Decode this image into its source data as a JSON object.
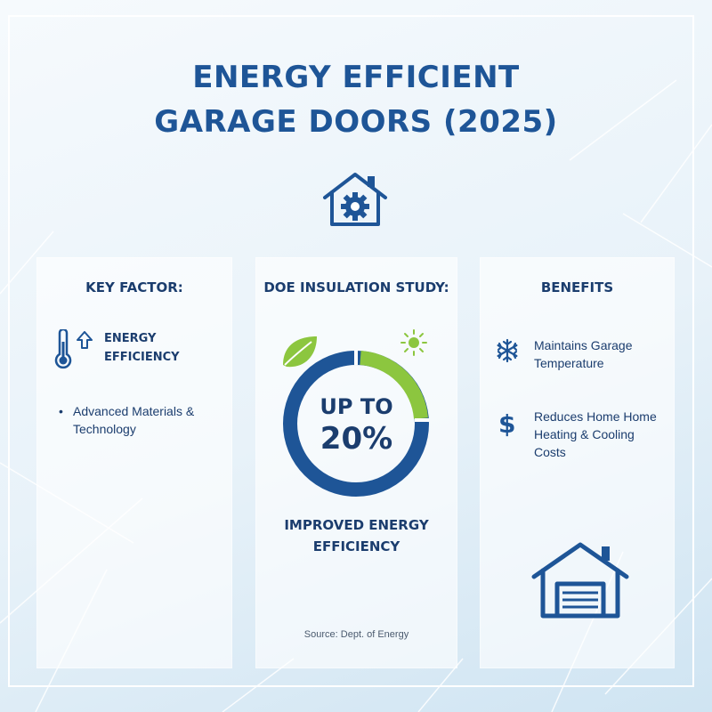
{
  "title": {
    "line1": "ENERGY EFFICIENT",
    "line2": "GARAGE DOORS (2025)"
  },
  "colors": {
    "primary": "#1e5597",
    "accent_green": "#8cc63f",
    "text_dark": "#1b3d6e"
  },
  "cards": {
    "key_factor": {
      "heading": "KEY FACTOR:",
      "factor_label": "ENERGY EFFICIENCY",
      "factor_icons": [
        "thermometer-icon",
        "arrow-up-icon"
      ],
      "bullet": "Advanced Materials & Technology"
    },
    "study": {
      "heading": "DOE INSULATION STUDY:",
      "stat_line1": "UP TO",
      "stat_line2": "20%",
      "improved": "IMPROVED ENERGY EFFICIENCY",
      "source": "Source: Dept. of Energy",
      "icons": [
        "leaf-icon",
        "sun-icon"
      ]
    },
    "benefits": {
      "heading": "BENEFITS",
      "items": [
        {
          "icon": "snowflake-icon",
          "text": "Maintains Garage Temperature"
        },
        {
          "icon": "dollar-icon",
          "symbol": "$",
          "text": "Reduces Home Home Heating & Cooling Costs"
        }
      ],
      "illustration": "garage-house-icon"
    }
  },
  "header_icon": "house-gear-icon"
}
